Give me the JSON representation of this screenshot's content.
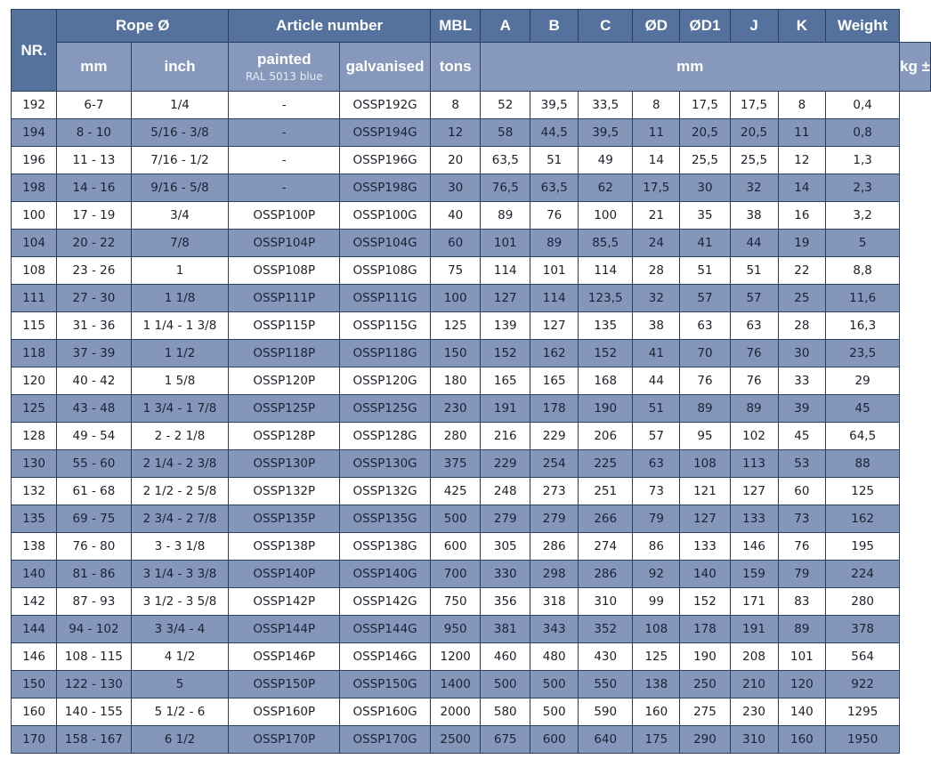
{
  "header": {
    "nr": "NR.",
    "rope": "Rope Ø",
    "article": "Article number",
    "mbl": "MBL",
    "a": "A",
    "b": "B",
    "c": "C",
    "d": "ØD",
    "d1": "ØD1",
    "j": "J",
    "k": "K",
    "weight": "Weight",
    "mm": "mm",
    "inch": "inch",
    "painted": "painted",
    "painted_sub": "RAL 5013 blue",
    "galvanised": "galvanised",
    "tons": "tons",
    "dims_unit": "mm",
    "weight_unit": "kg ±"
  },
  "rows": [
    [
      "192",
      "6-7",
      "1/4",
      "-",
      "OSSP192G",
      "8",
      "52",
      "39,5",
      "33,5",
      "8",
      "17,5",
      "17,5",
      "8",
      "0,4"
    ],
    [
      "194",
      "8 - 10",
      "5/16 - 3/8",
      "-",
      "OSSP194G",
      "12",
      "58",
      "44,5",
      "39,5",
      "11",
      "20,5",
      "20,5",
      "11",
      "0,8"
    ],
    [
      "196",
      "11 - 13",
      "7/16 - 1/2",
      "-",
      "OSSP196G",
      "20",
      "63,5",
      "51",
      "49",
      "14",
      "25,5",
      "25,5",
      "12",
      "1,3"
    ],
    [
      "198",
      "14 - 16",
      "9/16 - 5/8",
      "-",
      "OSSP198G",
      "30",
      "76,5",
      "63,5",
      "62",
      "17,5",
      "30",
      "32",
      "14",
      "2,3"
    ],
    [
      "100",
      "17 - 19",
      "3/4",
      "OSSP100P",
      "OSSP100G",
      "40",
      "89",
      "76",
      "100",
      "21",
      "35",
      "38",
      "16",
      "3,2"
    ],
    [
      "104",
      "20 - 22",
      "7/8",
      "OSSP104P",
      "OSSP104G",
      "60",
      "101",
      "89",
      "85,5",
      "24",
      "41",
      "44",
      "19",
      "5"
    ],
    [
      "108",
      "23 - 26",
      "1",
      "OSSP108P",
      "OSSP108G",
      "75",
      "114",
      "101",
      "114",
      "28",
      "51",
      "51",
      "22",
      "8,8"
    ],
    [
      "111",
      "27 - 30",
      "1 1/8",
      "OSSP111P",
      "OSSP111G",
      "100",
      "127",
      "114",
      "123,5",
      "32",
      "57",
      "57",
      "25",
      "11,6"
    ],
    [
      "115",
      "31 - 36",
      "1 1/4 - 1 3/8",
      "OSSP115P",
      "OSSP115G",
      "125",
      "139",
      "127",
      "135",
      "38",
      "63",
      "63",
      "28",
      "16,3"
    ],
    [
      "118",
      "37 - 39",
      "1 1/2",
      "OSSP118P",
      "OSSP118G",
      "150",
      "152",
      "162",
      "152",
      "41",
      "70",
      "76",
      "30",
      "23,5"
    ],
    [
      "120",
      "40 - 42",
      "1 5/8",
      "OSSP120P",
      "OSSP120G",
      "180",
      "165",
      "165",
      "168",
      "44",
      "76",
      "76",
      "33",
      "29"
    ],
    [
      "125",
      "43 - 48",
      "1 3/4 - 1 7/8",
      "OSSP125P",
      "OSSP125G",
      "230",
      "191",
      "178",
      "190",
      "51",
      "89",
      "89",
      "39",
      "45"
    ],
    [
      "128",
      "49 - 54",
      "2 - 2 1/8",
      "OSSP128P",
      "OSSP128G",
      "280",
      "216",
      "229",
      "206",
      "57",
      "95",
      "102",
      "45",
      "64,5"
    ],
    [
      "130",
      "55 - 60",
      "2 1/4 - 2 3/8",
      "OSSP130P",
      "OSSP130G",
      "375",
      "229",
      "254",
      "225",
      "63",
      "108",
      "113",
      "53",
      "88"
    ],
    [
      "132",
      "61 - 68",
      "2 1/2 - 2 5/8",
      "OSSP132P",
      "OSSP132G",
      "425",
      "248",
      "273",
      "251",
      "73",
      "121",
      "127",
      "60",
      "125"
    ],
    [
      "135",
      "69 - 75",
      "2 3/4 - 2 7/8",
      "OSSP135P",
      "OSSP135G",
      "500",
      "279",
      "279",
      "266",
      "79",
      "127",
      "133",
      "73",
      "162"
    ],
    [
      "138",
      "76 - 80",
      "3 - 3 1/8",
      "OSSP138P",
      "OSSP138G",
      "600",
      "305",
      "286",
      "274",
      "86",
      "133",
      "146",
      "76",
      "195"
    ],
    [
      "140",
      "81 - 86",
      "3 1/4 - 3 3/8",
      "OSSP140P",
      "OSSP140G",
      "700",
      "330",
      "298",
      "286",
      "92",
      "140",
      "159",
      "79",
      "224"
    ],
    [
      "142",
      "87 - 93",
      "3 1/2 - 3 5/8",
      "OSSP142P",
      "OSSP142G",
      "750",
      "356",
      "318",
      "310",
      "99",
      "152",
      "171",
      "83",
      "280"
    ],
    [
      "144",
      "94 - 102",
      "3 3/4 - 4",
      "OSSP144P",
      "OSSP144G",
      "950",
      "381",
      "343",
      "352",
      "108",
      "178",
      "191",
      "89",
      "378"
    ],
    [
      "146",
      "108 - 115",
      "4 1/2",
      "OSSP146P",
      "OSSP146G",
      "1200",
      "460",
      "480",
      "430",
      "125",
      "190",
      "208",
      "101",
      "564"
    ],
    [
      "150",
      "122 - 130",
      "5",
      "OSSP150P",
      "OSSP150G",
      "1400",
      "500",
      "500",
      "550",
      "138",
      "250",
      "210",
      "120",
      "922"
    ],
    [
      "160",
      "140 - 155",
      "5 1/2 - 6",
      "OSSP160P",
      "OSSP160G",
      "2000",
      "580",
      "500",
      "590",
      "160",
      "275",
      "230",
      "140",
      "1295"
    ],
    [
      "170",
      "158 - 167",
      "6 1/2",
      "OSSP170P",
      "OSSP170G",
      "2500",
      "675",
      "600",
      "640",
      "175",
      "290",
      "310",
      "160",
      "1950"
    ]
  ]
}
